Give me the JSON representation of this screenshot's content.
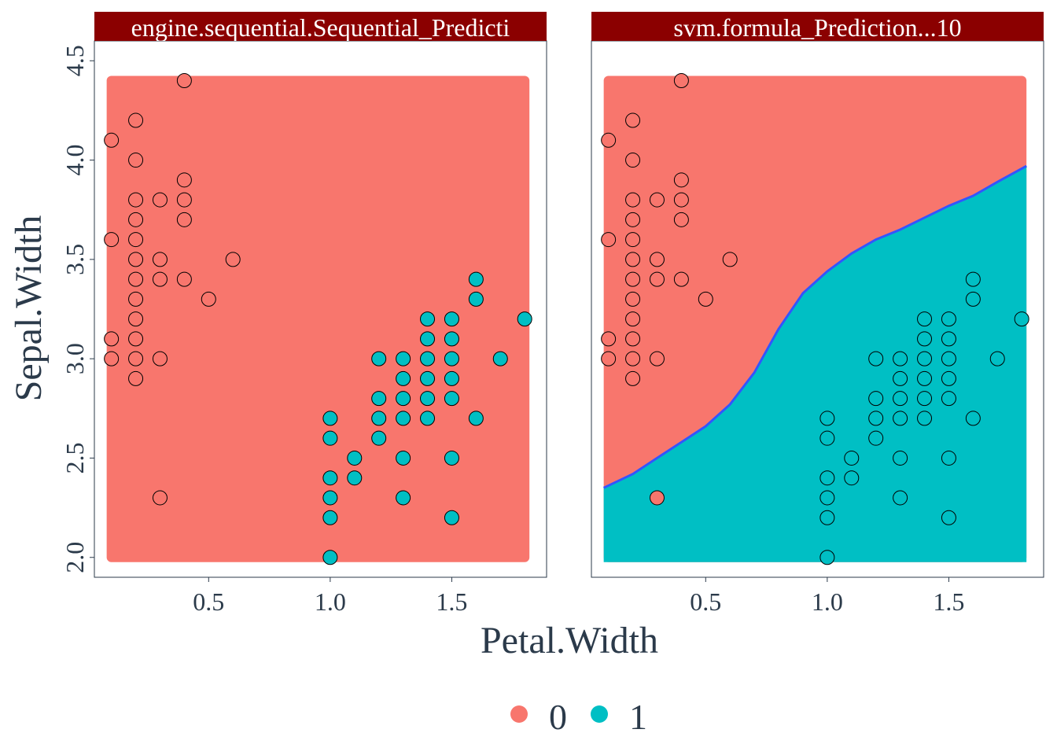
{
  "colors": {
    "class0": "#F8766D",
    "class1": "#00BFC4",
    "strip": "#8B0000",
    "strip_text": "#ffffff",
    "boundary": "#3355ff",
    "text": "#2b3a4a",
    "panel_border": "#2b3a4a"
  },
  "axes": {
    "xlabel": "Petal.Width",
    "ylabel": "Sepal.Width",
    "xlim": [
      0.03,
      1.89
    ],
    "ylim": [
      1.9,
      4.6
    ],
    "xticks": [
      "0.5",
      "1.0",
      "1.5"
    ],
    "yticks": [
      "2.0",
      "2.5",
      "3.0",
      "3.5",
      "4.0",
      "4.5"
    ]
  },
  "legend": {
    "position": "bottom",
    "entries": [
      {
        "label": "0",
        "color": "#F8766D"
      },
      {
        "label": "1",
        "color": "#00BFC4"
      }
    ]
  },
  "chart_data": [
    {
      "type": "scatter",
      "panel": "left",
      "title": "engine.sequential.Sequential_Predicti",
      "region_x": [
        0.1,
        1.8
      ],
      "region_y": [
        2.0,
        4.4
      ],
      "background_class": "0",
      "boundary": []
    },
    {
      "type": "scatter",
      "panel": "right",
      "title": "svm.formula_Prediction...10",
      "region_x": [
        0.1,
        1.8
      ],
      "region_y": [
        2.0,
        4.4
      ],
      "background_class": "0",
      "boundary": [
        [
          0.1,
          2.35
        ],
        [
          0.2,
          2.42
        ],
        [
          0.3,
          2.5
        ],
        [
          0.4,
          2.58
        ],
        [
          0.5,
          2.66
        ],
        [
          0.6,
          2.77
        ],
        [
          0.7,
          2.93
        ],
        [
          0.8,
          3.15
        ],
        [
          0.9,
          3.33
        ],
        [
          1.0,
          3.44
        ],
        [
          1.1,
          3.53
        ],
        [
          1.2,
          3.6
        ],
        [
          1.3,
          3.65
        ],
        [
          1.4,
          3.71
        ],
        [
          1.5,
          3.77
        ],
        [
          1.6,
          3.82
        ],
        [
          1.7,
          3.89
        ],
        [
          1.8,
          3.97
        ]
      ]
    }
  ],
  "points": [
    {
      "x": 0.1,
      "y": 4.1,
      "c": "0"
    },
    {
      "x": 0.1,
      "y": 3.6,
      "c": "0"
    },
    {
      "x": 0.1,
      "y": 3.1,
      "c": "0"
    },
    {
      "x": 0.1,
      "y": 3.0,
      "c": "0"
    },
    {
      "x": 0.2,
      "y": 4.2,
      "c": "0"
    },
    {
      "x": 0.2,
      "y": 4.0,
      "c": "0"
    },
    {
      "x": 0.2,
      "y": 3.8,
      "c": "0"
    },
    {
      "x": 0.2,
      "y": 3.7,
      "c": "0"
    },
    {
      "x": 0.2,
      "y": 3.6,
      "c": "0"
    },
    {
      "x": 0.2,
      "y": 3.5,
      "c": "0"
    },
    {
      "x": 0.2,
      "y": 3.4,
      "c": "0"
    },
    {
      "x": 0.2,
      "y": 3.3,
      "c": "0"
    },
    {
      "x": 0.2,
      "y": 3.2,
      "c": "0"
    },
    {
      "x": 0.2,
      "y": 3.1,
      "c": "0"
    },
    {
      "x": 0.2,
      "y": 3.0,
      "c": "0"
    },
    {
      "x": 0.2,
      "y": 2.9,
      "c": "0"
    },
    {
      "x": 0.3,
      "y": 3.8,
      "c": "0"
    },
    {
      "x": 0.3,
      "y": 3.5,
      "c": "0"
    },
    {
      "x": 0.3,
      "y": 3.4,
      "c": "0"
    },
    {
      "x": 0.3,
      "y": 3.0,
      "c": "0"
    },
    {
      "x": 0.3,
      "y": 2.3,
      "c": "0"
    },
    {
      "x": 0.4,
      "y": 4.4,
      "c": "0"
    },
    {
      "x": 0.4,
      "y": 3.9,
      "c": "0"
    },
    {
      "x": 0.4,
      "y": 3.8,
      "c": "0"
    },
    {
      "x": 0.4,
      "y": 3.7,
      "c": "0"
    },
    {
      "x": 0.4,
      "y": 3.4,
      "c": "0"
    },
    {
      "x": 0.5,
      "y": 3.3,
      "c": "0"
    },
    {
      "x": 0.6,
      "y": 3.5,
      "c": "0"
    },
    {
      "x": 1.0,
      "y": 2.7,
      "c": "1"
    },
    {
      "x": 1.0,
      "y": 2.6,
      "c": "1"
    },
    {
      "x": 1.0,
      "y": 2.4,
      "c": "1"
    },
    {
      "x": 1.0,
      "y": 2.3,
      "c": "1"
    },
    {
      "x": 1.0,
      "y": 2.2,
      "c": "1"
    },
    {
      "x": 1.0,
      "y": 2.0,
      "c": "1"
    },
    {
      "x": 1.1,
      "y": 2.5,
      "c": "1"
    },
    {
      "x": 1.1,
      "y": 2.4,
      "c": "1"
    },
    {
      "x": 1.2,
      "y": 3.0,
      "c": "1"
    },
    {
      "x": 1.2,
      "y": 2.8,
      "c": "1"
    },
    {
      "x": 1.2,
      "y": 2.7,
      "c": "1"
    },
    {
      "x": 1.2,
      "y": 2.6,
      "c": "1"
    },
    {
      "x": 1.3,
      "y": 3.0,
      "c": "1"
    },
    {
      "x": 1.3,
      "y": 2.9,
      "c": "1"
    },
    {
      "x": 1.3,
      "y": 2.8,
      "c": "1"
    },
    {
      "x": 1.3,
      "y": 2.7,
      "c": "1"
    },
    {
      "x": 1.3,
      "y": 2.5,
      "c": "1"
    },
    {
      "x": 1.3,
      "y": 2.3,
      "c": "1"
    },
    {
      "x": 1.4,
      "y": 3.2,
      "c": "1"
    },
    {
      "x": 1.4,
      "y": 3.1,
      "c": "1"
    },
    {
      "x": 1.4,
      "y": 3.0,
      "c": "1"
    },
    {
      "x": 1.4,
      "y": 2.9,
      "c": "1"
    },
    {
      "x": 1.4,
      "y": 2.8,
      "c": "1"
    },
    {
      "x": 1.4,
      "y": 2.7,
      "c": "1"
    },
    {
      "x": 1.5,
      "y": 3.2,
      "c": "1"
    },
    {
      "x": 1.5,
      "y": 3.1,
      "c": "1"
    },
    {
      "x": 1.5,
      "y": 3.0,
      "c": "1"
    },
    {
      "x": 1.5,
      "y": 2.9,
      "c": "1"
    },
    {
      "x": 1.5,
      "y": 2.8,
      "c": "1"
    },
    {
      "x": 1.5,
      "y": 2.5,
      "c": "1"
    },
    {
      "x": 1.5,
      "y": 2.2,
      "c": "1"
    },
    {
      "x": 1.6,
      "y": 3.4,
      "c": "1"
    },
    {
      "x": 1.6,
      "y": 3.3,
      "c": "1"
    },
    {
      "x": 1.6,
      "y": 2.7,
      "c": "1"
    },
    {
      "x": 1.7,
      "y": 3.0,
      "c": "1"
    },
    {
      "x": 1.8,
      "y": 3.2,
      "c": "1"
    }
  ]
}
